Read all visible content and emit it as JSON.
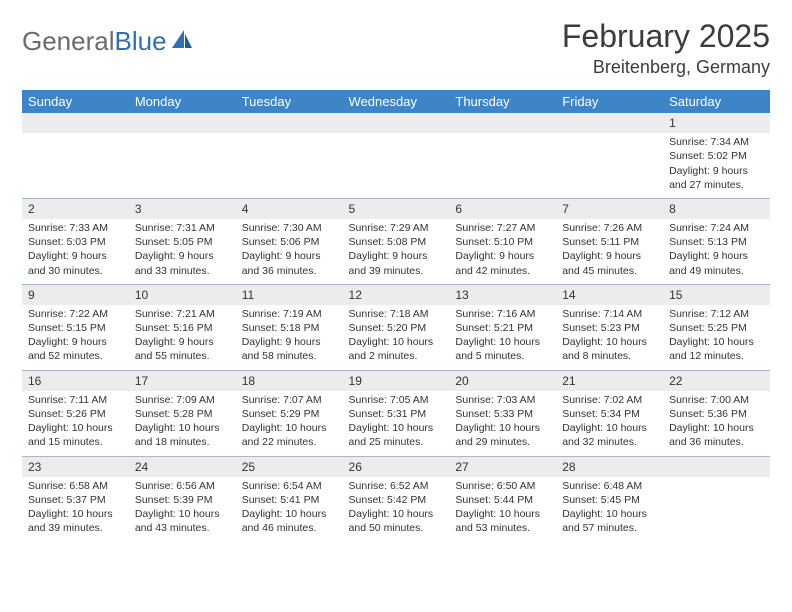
{
  "logo": {
    "text1": "General",
    "text2": "Blue"
  },
  "title": "February 2025",
  "location": "Breitenberg, Germany",
  "header_color": "#3d85c6",
  "daynum_bg": "#ececec",
  "border_color": "#a6b8c9",
  "days": [
    "Sunday",
    "Monday",
    "Tuesday",
    "Wednesday",
    "Thursday",
    "Friday",
    "Saturday"
  ],
  "weeks": [
    [
      null,
      null,
      null,
      null,
      null,
      null,
      {
        "n": "1",
        "sr": "Sunrise: 7:34 AM",
        "ss": "Sunset: 5:02 PM",
        "dl1": "Daylight: 9 hours",
        "dl2": "and 27 minutes."
      }
    ],
    [
      {
        "n": "2",
        "sr": "Sunrise: 7:33 AM",
        "ss": "Sunset: 5:03 PM",
        "dl1": "Daylight: 9 hours",
        "dl2": "and 30 minutes."
      },
      {
        "n": "3",
        "sr": "Sunrise: 7:31 AM",
        "ss": "Sunset: 5:05 PM",
        "dl1": "Daylight: 9 hours",
        "dl2": "and 33 minutes."
      },
      {
        "n": "4",
        "sr": "Sunrise: 7:30 AM",
        "ss": "Sunset: 5:06 PM",
        "dl1": "Daylight: 9 hours",
        "dl2": "and 36 minutes."
      },
      {
        "n": "5",
        "sr": "Sunrise: 7:29 AM",
        "ss": "Sunset: 5:08 PM",
        "dl1": "Daylight: 9 hours",
        "dl2": "and 39 minutes."
      },
      {
        "n": "6",
        "sr": "Sunrise: 7:27 AM",
        "ss": "Sunset: 5:10 PM",
        "dl1": "Daylight: 9 hours",
        "dl2": "and 42 minutes."
      },
      {
        "n": "7",
        "sr": "Sunrise: 7:26 AM",
        "ss": "Sunset: 5:11 PM",
        "dl1": "Daylight: 9 hours",
        "dl2": "and 45 minutes."
      },
      {
        "n": "8",
        "sr": "Sunrise: 7:24 AM",
        "ss": "Sunset: 5:13 PM",
        "dl1": "Daylight: 9 hours",
        "dl2": "and 49 minutes."
      }
    ],
    [
      {
        "n": "9",
        "sr": "Sunrise: 7:22 AM",
        "ss": "Sunset: 5:15 PM",
        "dl1": "Daylight: 9 hours",
        "dl2": "and 52 minutes."
      },
      {
        "n": "10",
        "sr": "Sunrise: 7:21 AM",
        "ss": "Sunset: 5:16 PM",
        "dl1": "Daylight: 9 hours",
        "dl2": "and 55 minutes."
      },
      {
        "n": "11",
        "sr": "Sunrise: 7:19 AM",
        "ss": "Sunset: 5:18 PM",
        "dl1": "Daylight: 9 hours",
        "dl2": "and 58 minutes."
      },
      {
        "n": "12",
        "sr": "Sunrise: 7:18 AM",
        "ss": "Sunset: 5:20 PM",
        "dl1": "Daylight: 10 hours",
        "dl2": "and 2 minutes."
      },
      {
        "n": "13",
        "sr": "Sunrise: 7:16 AM",
        "ss": "Sunset: 5:21 PM",
        "dl1": "Daylight: 10 hours",
        "dl2": "and 5 minutes."
      },
      {
        "n": "14",
        "sr": "Sunrise: 7:14 AM",
        "ss": "Sunset: 5:23 PM",
        "dl1": "Daylight: 10 hours",
        "dl2": "and 8 minutes."
      },
      {
        "n": "15",
        "sr": "Sunrise: 7:12 AM",
        "ss": "Sunset: 5:25 PM",
        "dl1": "Daylight: 10 hours",
        "dl2": "and 12 minutes."
      }
    ],
    [
      {
        "n": "16",
        "sr": "Sunrise: 7:11 AM",
        "ss": "Sunset: 5:26 PM",
        "dl1": "Daylight: 10 hours",
        "dl2": "and 15 minutes."
      },
      {
        "n": "17",
        "sr": "Sunrise: 7:09 AM",
        "ss": "Sunset: 5:28 PM",
        "dl1": "Daylight: 10 hours",
        "dl2": "and 18 minutes."
      },
      {
        "n": "18",
        "sr": "Sunrise: 7:07 AM",
        "ss": "Sunset: 5:29 PM",
        "dl1": "Daylight: 10 hours",
        "dl2": "and 22 minutes."
      },
      {
        "n": "19",
        "sr": "Sunrise: 7:05 AM",
        "ss": "Sunset: 5:31 PM",
        "dl1": "Daylight: 10 hours",
        "dl2": "and 25 minutes."
      },
      {
        "n": "20",
        "sr": "Sunrise: 7:03 AM",
        "ss": "Sunset: 5:33 PM",
        "dl1": "Daylight: 10 hours",
        "dl2": "and 29 minutes."
      },
      {
        "n": "21",
        "sr": "Sunrise: 7:02 AM",
        "ss": "Sunset: 5:34 PM",
        "dl1": "Daylight: 10 hours",
        "dl2": "and 32 minutes."
      },
      {
        "n": "22",
        "sr": "Sunrise: 7:00 AM",
        "ss": "Sunset: 5:36 PM",
        "dl1": "Daylight: 10 hours",
        "dl2": "and 36 minutes."
      }
    ],
    [
      {
        "n": "23",
        "sr": "Sunrise: 6:58 AM",
        "ss": "Sunset: 5:37 PM",
        "dl1": "Daylight: 10 hours",
        "dl2": "and 39 minutes."
      },
      {
        "n": "24",
        "sr": "Sunrise: 6:56 AM",
        "ss": "Sunset: 5:39 PM",
        "dl1": "Daylight: 10 hours",
        "dl2": "and 43 minutes."
      },
      {
        "n": "25",
        "sr": "Sunrise: 6:54 AM",
        "ss": "Sunset: 5:41 PM",
        "dl1": "Daylight: 10 hours",
        "dl2": "and 46 minutes."
      },
      {
        "n": "26",
        "sr": "Sunrise: 6:52 AM",
        "ss": "Sunset: 5:42 PM",
        "dl1": "Daylight: 10 hours",
        "dl2": "and 50 minutes."
      },
      {
        "n": "27",
        "sr": "Sunrise: 6:50 AM",
        "ss": "Sunset: 5:44 PM",
        "dl1": "Daylight: 10 hours",
        "dl2": "and 53 minutes."
      },
      {
        "n": "28",
        "sr": "Sunrise: 6:48 AM",
        "ss": "Sunset: 5:45 PM",
        "dl1": "Daylight: 10 hours",
        "dl2": "and 57 minutes."
      },
      null
    ]
  ]
}
